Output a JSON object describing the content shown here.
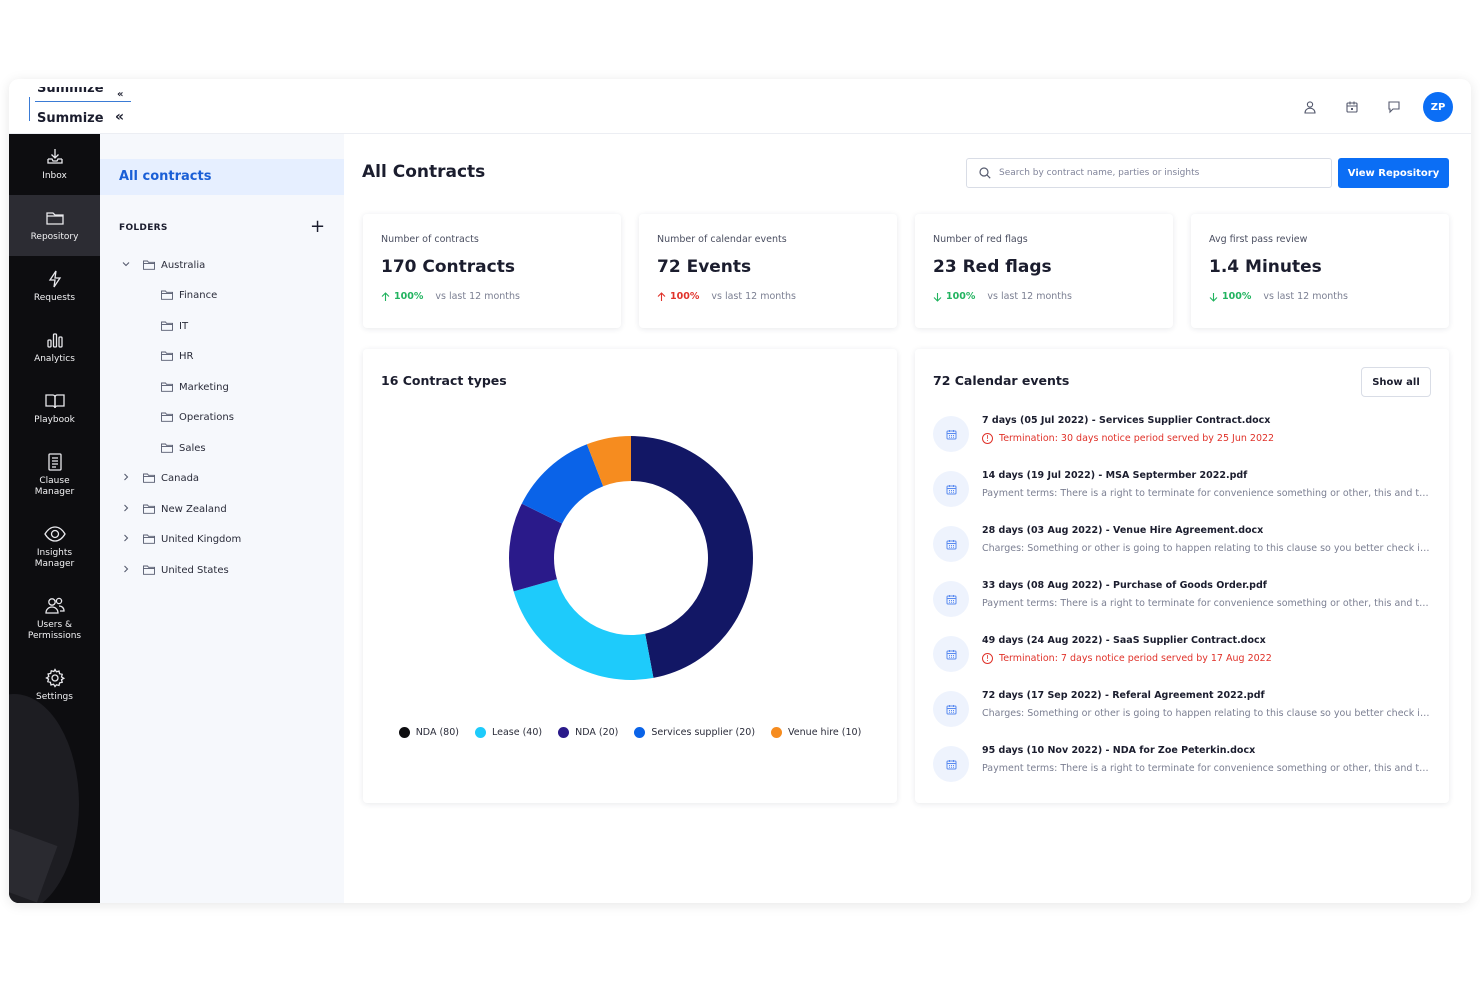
{
  "brand": {
    "logo_text": "Summize",
    "logo_text_cut": "Summize"
  },
  "header": {
    "avatar_initials": "ZP"
  },
  "sidenav": {
    "items": [
      {
        "label": "Inbox",
        "icon": "inbox-icon"
      },
      {
        "label": "Repository",
        "icon": "folder-icon",
        "active": true
      },
      {
        "label": "Requests",
        "icon": "lightning-icon"
      },
      {
        "label": "Analytics",
        "icon": "bar-chart-icon"
      },
      {
        "label": "Playbook",
        "icon": "book-icon"
      },
      {
        "label": "Clause Manager",
        "icon": "document-icon"
      },
      {
        "label": "Insights Manager",
        "icon": "eye-icon"
      },
      {
        "label": "Users & Permissions",
        "icon": "users-icon"
      },
      {
        "label": "Settings",
        "icon": "gear-icon"
      }
    ]
  },
  "folders": {
    "all_contracts": "All contracts",
    "heading": "FOLDERS",
    "add": "+",
    "tree": [
      {
        "label": "Australia",
        "expanded": true,
        "children": [
          "Finance",
          "IT",
          "HR",
          "Marketing",
          "Operations",
          "Sales"
        ]
      },
      {
        "label": "Canada"
      },
      {
        "label": "New Zealand"
      },
      {
        "label": "United Kingdom"
      },
      {
        "label": "United States"
      }
    ]
  },
  "main": {
    "title": "All Contracts",
    "search_placeholder": "Search by contract name, parties or insights",
    "view_button": "View Repository"
  },
  "stats": [
    {
      "label": "Number of contracts",
      "value": "170 Contracts",
      "pct": "100%",
      "direction": "up",
      "color": "#21b35f",
      "sub": "vs last 12 months"
    },
    {
      "label": "Number of calendar events",
      "value": "72 Events",
      "pct": "100%",
      "direction": "up",
      "color": "#e0322a",
      "sub": "vs last 12 months"
    },
    {
      "label": "Number of red flags",
      "value": "23 Red flags",
      "pct": "100%",
      "direction": "down",
      "color": "#21b35f",
      "sub": "vs last 12 months"
    },
    {
      "label": "Avg first pass review",
      "value": "1.4 Minutes",
      "pct": "100%",
      "direction": "down",
      "color": "#21b35f",
      "sub": "vs last 12 months"
    }
  ],
  "contract_types": {
    "title": "16 Contract types",
    "legend": [
      "NDA (80)",
      "Lease (40)",
      "NDA (20)",
      "Services supplier (20)",
      "Venue hire (10)"
    ]
  },
  "chart_data": {
    "type": "pie",
    "donut": true,
    "title": "16 Contract types",
    "categories": [
      "NDA",
      "Lease",
      "NDA",
      "Services supplier",
      "Venue hire"
    ],
    "values": [
      80,
      40,
      20,
      20,
      10
    ],
    "colors": [
      "#121765",
      "#1ecbfb",
      "#2a1a8a",
      "#0a63e8",
      "#f68c1f"
    ]
  },
  "calendar": {
    "title": "72 Calendar events",
    "show_all": "Show all",
    "events": [
      {
        "title": "7 days (05 Jul 2022) - Services Supplier Contract.docx",
        "desc": "Termination: 30 days notice period served by 25 Jun 2022",
        "warn": true
      },
      {
        "title": "14 days (19 Jul 2022) - MSA Septermber 2022.pdf",
        "desc": "Payment terms: There is a right to terminate for convenience something or other, this and that and the other thing",
        "warn": false
      },
      {
        "title": "28 days (03 Aug 2022) - Venue Hire Agreement.docx",
        "desc": "Charges: Something or other is going to happen relating to this clause so you better check it out",
        "warn": false
      },
      {
        "title": "33 days (08 Aug 2022) - Purchase of Goods Order.pdf",
        "desc": "Payment terms: There is a right to terminate for convenience something or other, this and that and the other thing",
        "warn": false
      },
      {
        "title": "49 days (24 Aug 2022) - SaaS Supplier Contract.docx",
        "desc": "Termination: 7 days notice period served by 17 Aug 2022",
        "warn": true
      },
      {
        "title": "72 days (17 Sep 2022) - Referal Agreement 2022.pdf",
        "desc": "Charges: Something or other is going to happen relating to this clause so you better check it out",
        "warn": false
      },
      {
        "title": "95 days (10 Nov 2022) - NDA for Zoe Peterkin.docx",
        "desc": "Payment terms: There is a right to terminate for convenience something or other, this and that and the other thing",
        "warn": false
      }
    ]
  }
}
